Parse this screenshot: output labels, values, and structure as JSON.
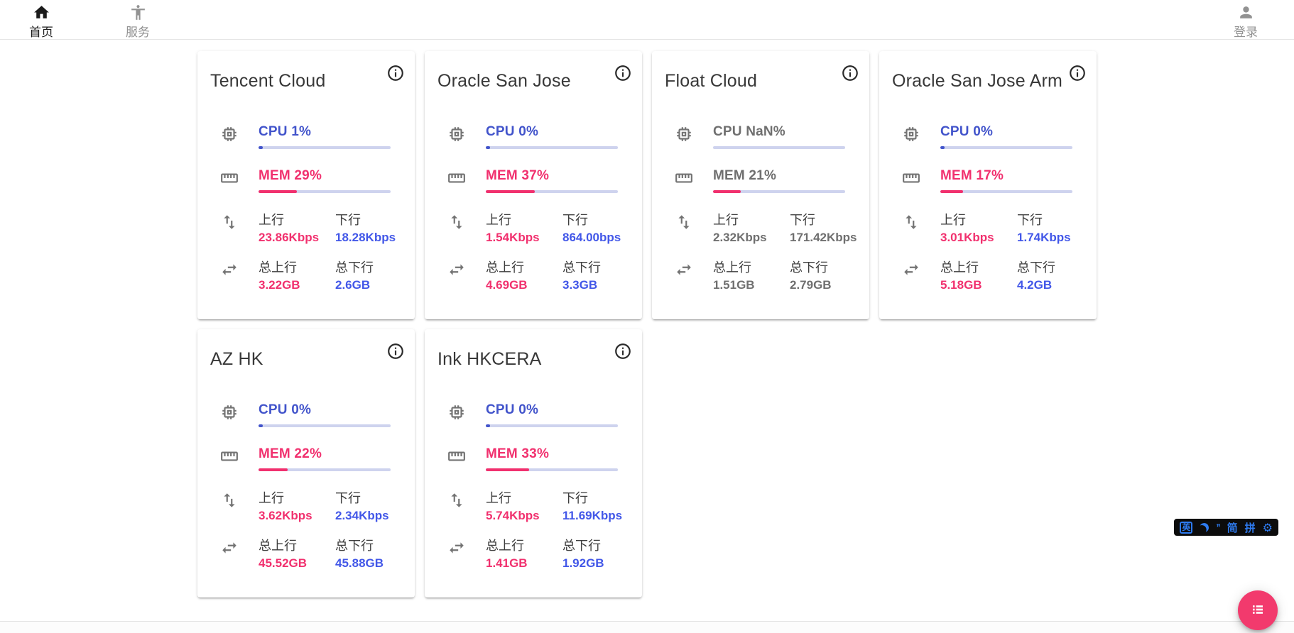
{
  "nav": {
    "home": {
      "label": "首页"
    },
    "services": {
      "label": "服务"
    },
    "login": {
      "label": "登录"
    }
  },
  "labels": {
    "up": "上行",
    "down": "下行",
    "total_up": "总上行",
    "total_down": "总下行"
  },
  "servers": [
    {
      "name": "Tencent Cloud",
      "cpu_text": "CPU 1%",
      "cpu_pct": 1,
      "mem_text": "MEM 29%",
      "mem_pct": 29,
      "up": "23.86Kbps",
      "down": "18.28Kbps",
      "total_up": "3.22GB",
      "total_down": "2.6GB",
      "online": true
    },
    {
      "name": "Oracle San Jose",
      "cpu_text": "CPU 0%",
      "cpu_pct": 0,
      "mem_text": "MEM 37%",
      "mem_pct": 37,
      "up": "1.54Kbps",
      "down": "864.00bps",
      "total_up": "4.69GB",
      "total_down": "3.3GB",
      "online": true
    },
    {
      "name": "Float Cloud",
      "cpu_text": "CPU NaN%",
      "cpu_pct": null,
      "mem_text": "MEM 21%",
      "mem_pct": 21,
      "up": "2.32Kbps",
      "down": "171.42Kbps",
      "total_up": "1.51GB",
      "total_down": "2.79GB",
      "online": false
    },
    {
      "name": "Oracle San Jose Arm",
      "cpu_text": "CPU 0%",
      "cpu_pct": 0,
      "mem_text": "MEM 17%",
      "mem_pct": 17,
      "up": "3.01Kbps",
      "down": "1.74Kbps",
      "total_up": "5.18GB",
      "total_down": "4.2GB",
      "online": true
    },
    {
      "name": "AZ HK",
      "cpu_text": "CPU 0%",
      "cpu_pct": 0,
      "mem_text": "MEM 22%",
      "mem_pct": 22,
      "up": "3.62Kbps",
      "down": "2.34Kbps",
      "total_up": "45.52GB",
      "total_down": "45.88GB",
      "online": true
    },
    {
      "name": "Ink HKCERA",
      "cpu_text": "CPU 0%",
      "cpu_pct": 0,
      "mem_text": "MEM 33%",
      "mem_pct": 33,
      "up": "5.74Kbps",
      "down": "11.69Kbps",
      "total_up": "1.41GB",
      "total_down": "1.92GB",
      "online": true
    }
  ],
  "ime": {
    "english": "英",
    "quotes": "’’",
    "simplified": "简",
    "pinyin": "拼",
    "gear": "⚙"
  },
  "colors": {
    "cpu_blue": "#4254cb",
    "value_blue": "#4257e8",
    "pink": "#f1306e",
    "bar_track": "#ced3ee",
    "offline_gray": "#6f6f6f",
    "fab_pink": "#f23a6d",
    "ime_blue": "#2e7bf0",
    "ime_bg": "#0c0c0c"
  }
}
